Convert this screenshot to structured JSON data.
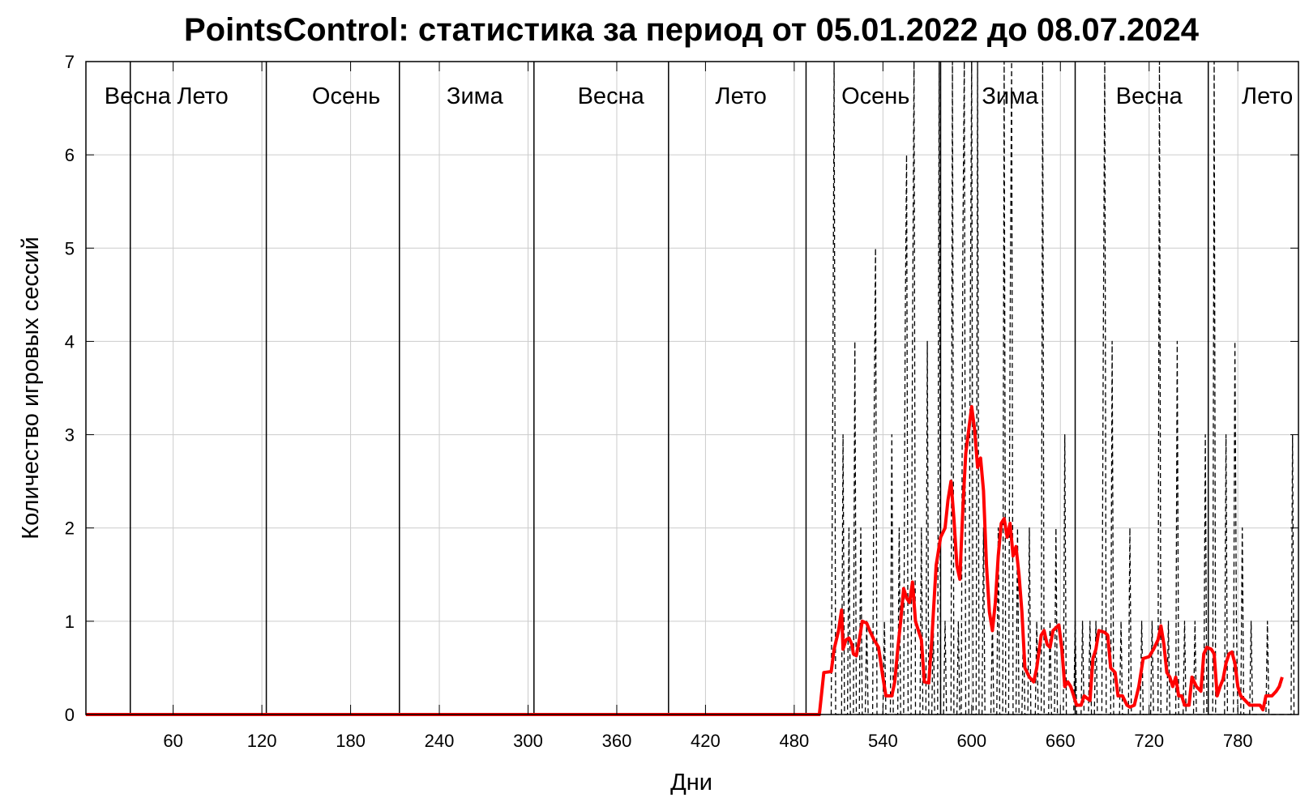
{
  "chart_data": {
    "type": "line",
    "title": "PointsControl: статистика за период от 05.01.2022 до 08.07.2024",
    "xlabel": "Дни",
    "ylabel": "Количество игровых сессий",
    "xlim": [
      1,
      821
    ],
    "ylim": [
      0,
      7
    ],
    "x_ticks": [
      60,
      120,
      180,
      240,
      300,
      360,
      420,
      480,
      540,
      600,
      660,
      720,
      780
    ],
    "y_ticks": [
      0,
      1,
      2,
      3,
      4,
      5,
      6,
      7
    ],
    "grid": true,
    "season_boundaries": [
      31,
      123,
      213,
      304,
      395,
      488,
      579,
      670,
      760
    ],
    "season_labels": [
      {
        "text": "Весна",
        "x": 36
      },
      {
        "text": "Лето",
        "x": 80
      },
      {
        "text": "Осень",
        "x": 177
      },
      {
        "text": "Зима",
        "x": 264
      },
      {
        "text": "Весна",
        "x": 356
      },
      {
        "text": "Лето",
        "x": 444
      },
      {
        "text": "Осень",
        "x": 535
      },
      {
        "text": "Зима",
        "x": 626
      },
      {
        "text": "Весна",
        "x": 720
      },
      {
        "text": "Лето",
        "x": 800
      }
    ],
    "series": [
      {
        "name": "Ежедневные сессии",
        "style": "dashed",
        "color": "#000000",
        "points": [
          [
            505,
            0
          ],
          [
            506,
            3
          ],
          [
            507,
            7
          ],
          [
            508,
            0
          ],
          [
            512,
            0
          ],
          [
            513,
            3
          ],
          [
            514,
            0
          ],
          [
            516,
            0
          ],
          [
            517,
            2
          ],
          [
            518,
            0
          ],
          [
            520,
            0
          ],
          [
            521,
            4
          ],
          [
            522,
            0
          ],
          [
            524,
            0
          ],
          [
            525,
            2
          ],
          [
            526,
            0
          ],
          [
            528,
            0
          ],
          [
            529,
            1
          ],
          [
            530,
            0
          ],
          [
            533,
            0
          ],
          [
            534,
            3
          ],
          [
            535,
            5
          ],
          [
            536,
            0
          ],
          [
            540,
            0
          ],
          [
            541,
            1
          ],
          [
            542,
            0
          ],
          [
            545,
            0
          ],
          [
            546,
            3
          ],
          [
            547,
            0
          ],
          [
            550,
            0
          ],
          [
            551,
            2
          ],
          [
            552,
            0
          ],
          [
            554,
            0
          ],
          [
            555,
            4
          ],
          [
            556,
            6
          ],
          [
            557,
            0
          ],
          [
            559,
            0
          ],
          [
            560,
            4
          ],
          [
            561,
            7
          ],
          [
            562,
            0
          ],
          [
            565,
            0
          ],
          [
            566,
            2
          ],
          [
            567,
            0
          ],
          [
            569,
            0
          ],
          [
            570,
            4
          ],
          [
            571,
            0
          ],
          [
            573,
            0
          ],
          [
            574,
            1
          ],
          [
            575,
            0
          ],
          [
            577,
            0
          ],
          [
            578,
            7
          ],
          [
            579,
            0
          ],
          [
            581,
            0
          ],
          [
            582,
            1
          ],
          [
            583,
            0
          ],
          [
            586,
            0
          ],
          [
            587,
            7
          ],
          [
            588,
            0
          ],
          [
            590,
            0
          ],
          [
            591,
            1
          ],
          [
            592,
            0
          ],
          [
            593,
            0
          ],
          [
            594,
            5
          ],
          [
            595,
            7
          ],
          [
            596,
            0
          ],
          [
            598,
            0
          ],
          [
            599,
            4
          ],
          [
            600,
            7
          ],
          [
            601,
            0
          ],
          [
            603,
            0
          ],
          [
            604,
            7
          ],
          [
            605,
            0
          ],
          [
            607,
            0
          ],
          [
            608,
            2
          ],
          [
            609,
            0
          ],
          [
            613,
            0
          ],
          [
            614,
            1
          ],
          [
            615,
            0
          ],
          [
            617,
            0
          ],
          [
            618,
            2
          ],
          [
            619,
            0
          ],
          [
            621,
            0
          ],
          [
            622,
            7
          ],
          [
            623,
            0
          ],
          [
            625,
            0
          ],
          [
            626,
            4
          ],
          [
            627,
            7
          ],
          [
            628,
            0
          ],
          [
            630,
            0
          ],
          [
            631,
            2
          ],
          [
            632,
            0
          ],
          [
            634,
            0
          ],
          [
            635,
            1
          ],
          [
            636,
            0
          ],
          [
            638,
            0
          ],
          [
            639,
            2
          ],
          [
            640,
            0
          ],
          [
            643,
            0
          ],
          [
            644,
            1
          ],
          [
            645,
            0
          ],
          [
            647,
            0
          ],
          [
            648,
            7
          ],
          [
            649,
            0
          ],
          [
            652,
            0
          ],
          [
            653,
            1
          ],
          [
            654,
            0
          ],
          [
            656,
            0
          ],
          [
            657,
            2
          ],
          [
            658,
            0
          ],
          [
            662,
            0
          ],
          [
            663,
            3
          ],
          [
            664,
            0
          ],
          [
            669,
            0
          ],
          [
            670,
            1
          ],
          [
            671,
            0
          ],
          [
            674,
            0
          ],
          [
            675,
            1
          ],
          [
            676,
            0
          ],
          [
            679,
            0
          ],
          [
            680,
            1
          ],
          [
            681,
            0
          ],
          [
            683,
            0
          ],
          [
            684,
            1
          ],
          [
            685,
            0
          ],
          [
            688,
            0
          ],
          [
            689,
            4
          ],
          [
            690,
            7
          ],
          [
            691,
            0
          ],
          [
            694,
            0
          ],
          [
            695,
            4
          ],
          [
            696,
            0
          ],
          [
            700,
            0
          ],
          [
            701,
            1
          ],
          [
            702,
            0
          ],
          [
            706,
            0
          ],
          [
            707,
            2
          ],
          [
            708,
            0
          ],
          [
            714,
            0
          ],
          [
            715,
            1
          ],
          [
            716,
            0
          ],
          [
            721,
            0
          ],
          [
            722,
            1
          ],
          [
            723,
            0
          ],
          [
            726,
            0
          ],
          [
            727,
            7
          ],
          [
            728,
            0
          ],
          [
            732,
            0
          ],
          [
            733,
            1
          ],
          [
            734,
            0
          ],
          [
            738,
            0
          ],
          [
            739,
            4
          ],
          [
            740,
            0
          ],
          [
            743,
            0
          ],
          [
            744,
            1
          ],
          [
            745,
            0
          ],
          [
            750,
            0
          ],
          [
            751,
            1
          ],
          [
            752,
            0
          ],
          [
            757,
            0
          ],
          [
            758,
            3
          ],
          [
            759,
            0
          ],
          [
            763,
            0
          ],
          [
            764,
            7
          ],
          [
            765,
            0
          ],
          [
            771,
            0
          ],
          [
            772,
            3
          ],
          [
            773,
            0
          ],
          [
            777,
            0
          ],
          [
            778,
            4
          ],
          [
            779,
            1
          ],
          [
            780,
            0
          ],
          [
            782,
            0
          ],
          [
            783,
            2
          ],
          [
            784,
            0
          ],
          [
            788,
            0
          ],
          [
            789,
            1
          ],
          [
            790,
            0
          ],
          [
            799,
            0
          ],
          [
            800,
            1
          ],
          [
            801,
            0
          ],
          [
            816,
            0
          ],
          [
            817,
            3
          ],
          [
            818,
            0
          ]
        ]
      },
      {
        "name": "Скользящее среднее",
        "style": "solid",
        "color": "#ff0000",
        "points": [
          [
            1,
            0
          ],
          [
            100,
            0
          ],
          [
            200,
            0
          ],
          [
            300,
            0
          ],
          [
            400,
            0
          ],
          [
            497,
            0
          ],
          [
            500,
            0.45
          ],
          [
            505,
            0.46
          ],
          [
            507,
            0.7
          ],
          [
            510,
            0.9
          ],
          [
            512,
            1.12
          ],
          [
            513,
            0.7
          ],
          [
            515,
            0.8
          ],
          [
            517,
            0.82
          ],
          [
            519,
            0.75
          ],
          [
            520,
            0.65
          ],
          [
            522,
            0.63
          ],
          [
            524,
            0.8
          ],
          [
            526,
            1.0
          ],
          [
            529,
            0.98
          ],
          [
            531,
            0.9
          ],
          [
            534,
            0.8
          ],
          [
            537,
            0.72
          ],
          [
            540,
            0.4
          ],
          [
            542,
            0.2
          ],
          [
            546,
            0.2
          ],
          [
            548,
            0.35
          ],
          [
            550,
            0.7
          ],
          [
            552,
            1.0
          ],
          [
            554,
            1.35
          ],
          [
            556,
            1.25
          ],
          [
            558,
            1.2
          ],
          [
            560,
            1.42
          ],
          [
            562,
            1.0
          ],
          [
            564,
            0.9
          ],
          [
            566,
            0.8
          ],
          [
            568,
            0.35
          ],
          [
            571,
            0.34
          ],
          [
            573,
            0.8
          ],
          [
            576,
            1.6
          ],
          [
            579,
            1.9
          ],
          [
            582,
            2.0
          ],
          [
            584,
            2.3
          ],
          [
            586,
            2.5
          ],
          [
            588,
            2.1
          ],
          [
            590,
            1.6
          ],
          [
            592,
            1.45
          ],
          [
            594,
            2.2
          ],
          [
            596,
            2.8
          ],
          [
            598,
            3.05
          ],
          [
            600,
            3.3
          ],
          [
            602,
            3.05
          ],
          [
            604,
            2.65
          ],
          [
            606,
            2.75
          ],
          [
            608,
            2.4
          ],
          [
            610,
            1.6
          ],
          [
            612,
            1.1
          ],
          [
            614,
            0.9
          ],
          [
            616,
            1.2
          ],
          [
            618,
            1.7
          ],
          [
            620,
            2.05
          ],
          [
            622,
            2.1
          ],
          [
            624,
            1.9
          ],
          [
            626,
            2.05
          ],
          [
            628,
            1.7
          ],
          [
            630,
            1.8
          ],
          [
            632,
            1.5
          ],
          [
            634,
            1.1
          ],
          [
            636,
            0.5
          ],
          [
            639,
            0.4
          ],
          [
            642,
            0.35
          ],
          [
            644,
            0.5
          ],
          [
            647,
            0.85
          ],
          [
            649,
            0.9
          ],
          [
            651,
            0.75
          ],
          [
            653,
            0.72
          ],
          [
            655,
            0.9
          ],
          [
            659,
            0.96
          ],
          [
            661,
            0.7
          ],
          [
            663,
            0.3
          ],
          [
            665,
            0.35
          ],
          [
            667,
            0.3
          ],
          [
            669,
            0.2
          ],
          [
            671,
            0.1
          ],
          [
            674,
            0.1
          ],
          [
            676,
            0.2
          ],
          [
            680,
            0.15
          ],
          [
            682,
            0.6
          ],
          [
            684,
            0.7
          ],
          [
            686,
            0.9
          ],
          [
            690,
            0.88
          ],
          [
            692,
            0.85
          ],
          [
            694,
            0.5
          ],
          [
            697,
            0.45
          ],
          [
            699,
            0.2
          ],
          [
            702,
            0.2
          ],
          [
            705,
            0.1
          ],
          [
            707,
            0.08
          ],
          [
            710,
            0.1
          ],
          [
            713,
            0.3
          ],
          [
            716,
            0.6
          ],
          [
            720,
            0.62
          ],
          [
            723,
            0.7
          ],
          [
            726,
            0.8
          ],
          [
            728,
            0.95
          ],
          [
            730,
            0.75
          ],
          [
            732,
            0.45
          ],
          [
            734,
            0.4
          ],
          [
            736,
            0.3
          ],
          [
            738,
            0.4
          ],
          [
            740,
            0.2
          ],
          [
            742,
            0.2
          ],
          [
            744,
            0.1
          ],
          [
            747,
            0.1
          ],
          [
            749,
            0.4
          ],
          [
            752,
            0.3
          ],
          [
            755,
            0.25
          ],
          [
            757,
            0.65
          ],
          [
            759,
            0.72
          ],
          [
            762,
            0.7
          ],
          [
            764,
            0.65
          ],
          [
            766,
            0.2
          ],
          [
            768,
            0.3
          ],
          [
            770,
            0.38
          ],
          [
            772,
            0.55
          ],
          [
            774,
            0.65
          ],
          [
            776,
            0.67
          ],
          [
            778,
            0.55
          ],
          [
            780,
            0.3
          ],
          [
            782,
            0.2
          ],
          [
            785,
            0.15
          ],
          [
            788,
            0.1
          ],
          [
            792,
            0.1
          ],
          [
            795,
            0.1
          ],
          [
            797,
            0.05
          ],
          [
            799,
            0.2
          ],
          [
            803,
            0.2
          ],
          [
            806,
            0.25
          ],
          [
            808,
            0.3
          ],
          [
            810,
            0.4
          ]
        ]
      }
    ]
  }
}
